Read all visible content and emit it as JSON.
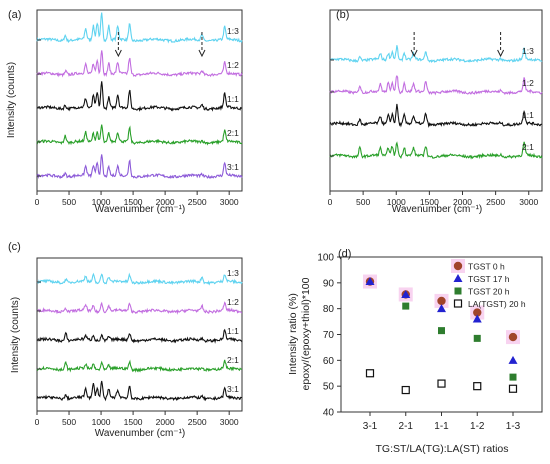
{
  "chart_data": [
    {
      "panel": "(a)",
      "type": "line",
      "xlabel": "Wavenumber (cm⁻¹)",
      "ylabel": "Intensity (counts)",
      "xlim": [
        0,
        3200
      ],
      "xticks": [
        0,
        500,
        1000,
        1500,
        2000,
        2500,
        3000
      ],
      "marker_positions": [
        1270,
        2575
      ],
      "series": [
        {
          "name": "1:3",
          "color": "#5fd3f0",
          "peaks": [
            [
              440,
              3
            ],
            [
              760,
              6
            ],
            [
              880,
              8
            ],
            [
              940,
              10
            ],
            [
              1010,
              16
            ],
            [
              1120,
              8
            ],
            [
              1260,
              7
            ],
            [
              1445,
              9
            ],
            [
              2575,
              3
            ],
            [
              2930,
              7
            ]
          ]
        },
        {
          "name": "1:2",
          "color": "#c26ee0",
          "peaks": [
            [
              450,
              2
            ],
            [
              760,
              5
            ],
            [
              880,
              6
            ],
            [
              940,
              8
            ],
            [
              1010,
              14
            ],
            [
              1120,
              6
            ],
            [
              1260,
              6
            ],
            [
              1445,
              9
            ],
            [
              2575,
              2
            ],
            [
              2930,
              6
            ]
          ]
        },
        {
          "name": "1:1",
          "color": "#111111",
          "peaks": [
            [
              440,
              2
            ],
            [
              760,
              5
            ],
            [
              880,
              7
            ],
            [
              940,
              9
            ],
            [
              1010,
              15
            ],
            [
              1120,
              6
            ],
            [
              1260,
              7
            ],
            [
              1445,
              10
            ],
            [
              2575,
              2
            ],
            [
              2930,
              8
            ]
          ]
        },
        {
          "name": "2:1",
          "color": "#2aa02a",
          "peaks": [
            [
              440,
              4
            ],
            [
              760,
              5
            ],
            [
              880,
              5
            ],
            [
              940,
              6
            ],
            [
              1010,
              10
            ],
            [
              1120,
              5
            ],
            [
              1260,
              5
            ],
            [
              1445,
              8
            ],
            [
              2575,
              1
            ],
            [
              2930,
              6
            ]
          ]
        },
        {
          "name": "3:1",
          "color": "#8c5ad8",
          "peaks": [
            [
              440,
              2
            ],
            [
              760,
              5
            ],
            [
              880,
              6
            ],
            [
              940,
              8
            ],
            [
              1010,
              12
            ],
            [
              1120,
              5
            ],
            [
              1260,
              5
            ],
            [
              1445,
              9
            ],
            [
              2575,
              1
            ],
            [
              2930,
              7
            ]
          ]
        }
      ]
    },
    {
      "panel": "(b)",
      "type": "line",
      "xlabel": "Wavenumber (cm⁻¹)",
      "ylabel": "",
      "xlim": [
        0,
        3200
      ],
      "xticks": [
        0,
        500,
        1000,
        1500,
        2000,
        2500,
        3000
      ],
      "marker_positions": [
        1270,
        2575
      ],
      "series": [
        {
          "name": "1:3",
          "color": "#5fd3f0",
          "peaks": [
            [
              450,
              2
            ],
            [
              760,
              3
            ],
            [
              880,
              4
            ],
            [
              940,
              5
            ],
            [
              1010,
              8
            ],
            [
              1120,
              4
            ],
            [
              1260,
              3
            ],
            [
              1445,
              5
            ],
            [
              2575,
              1
            ],
            [
              2930,
              6
            ]
          ]
        },
        {
          "name": "1:2",
          "color": "#c26ee0",
          "peaks": [
            [
              450,
              4
            ],
            [
              760,
              4
            ],
            [
              880,
              5
            ],
            [
              940,
              6
            ],
            [
              1010,
              10
            ],
            [
              1120,
              5
            ],
            [
              1260,
              4
            ],
            [
              1445,
              6
            ],
            [
              2575,
              1
            ],
            [
              2930,
              7
            ]
          ]
        },
        {
          "name": "1:1",
          "color": "#111111",
          "peaks": [
            [
              450,
              3
            ],
            [
              760,
              4
            ],
            [
              880,
              5
            ],
            [
              940,
              6
            ],
            [
              1010,
              11
            ],
            [
              1120,
              5
            ],
            [
              1260,
              4
            ],
            [
              1445,
              6
            ],
            [
              2575,
              1
            ],
            [
              2930,
              7
            ]
          ]
        },
        {
          "name": "2:1",
          "color": "#2aa02a",
          "peaks": [
            [
              450,
              5
            ],
            [
              760,
              4
            ],
            [
              880,
              5
            ],
            [
              940,
              6
            ],
            [
              1010,
              8
            ],
            [
              1120,
              5
            ],
            [
              1260,
              4
            ],
            [
              1445,
              6
            ],
            [
              2575,
              1
            ],
            [
              2930,
              7
            ]
          ]
        }
      ]
    },
    {
      "panel": "(c)",
      "type": "line",
      "xlabel": "Wavenumber (cm⁻¹)",
      "ylabel": "Intensity (counts)",
      "xlim": [
        0,
        3200
      ],
      "xticks": [
        0,
        500,
        1000,
        1500,
        2000,
        2500,
        3000
      ],
      "series": [
        {
          "name": "1:3",
          "color": "#5fd3f0",
          "peaks": [
            [
              450,
              2
            ],
            [
              760,
              3
            ],
            [
              880,
              4
            ],
            [
              1010,
              5
            ],
            [
              1120,
              3
            ],
            [
              1445,
              4
            ],
            [
              2575,
              3
            ],
            [
              2930,
              4
            ]
          ]
        },
        {
          "name": "1:2",
          "color": "#c26ee0",
          "peaks": [
            [
              450,
              2
            ],
            [
              760,
              3
            ],
            [
              880,
              3
            ],
            [
              1010,
              5
            ],
            [
              1120,
              3
            ],
            [
              1445,
              4
            ],
            [
              2575,
              3
            ],
            [
              2930,
              4
            ]
          ]
        },
        {
          "name": "1:1",
          "color": "#111111",
          "peaks": [
            [
              450,
              4
            ],
            [
              760,
              2
            ],
            [
              880,
              3
            ],
            [
              1010,
              3
            ],
            [
              1120,
              2
            ],
            [
              1445,
              4
            ],
            [
              2575,
              1
            ],
            [
              2930,
              5
            ]
          ]
        },
        {
          "name": "2:1",
          "color": "#2aa02a",
          "peaks": [
            [
              450,
              4
            ],
            [
              760,
              2
            ],
            [
              880,
              3
            ],
            [
              1010,
              4
            ],
            [
              1120,
              2
            ],
            [
              1445,
              4
            ],
            [
              2575,
              1
            ],
            [
              2930,
              4
            ]
          ]
        },
        {
          "name": "3:1",
          "color": "#111111",
          "peaks": [
            [
              450,
              2
            ],
            [
              760,
              5
            ],
            [
              880,
              8
            ],
            [
              940,
              6
            ],
            [
              1010,
              10
            ],
            [
              1120,
              5
            ],
            [
              1260,
              4
            ],
            [
              1445,
              7
            ],
            [
              2575,
              1
            ],
            [
              2930,
              5
            ]
          ]
        }
      ]
    },
    {
      "panel": "(d)",
      "type": "scatter",
      "xlabel": "TG:ST/LA(TG):LA(ST) ratios",
      "ylabel": "Intensity ratio (%)",
      "ylabel2": "epoxy/(epoxy+thiol)*100",
      "categories": [
        "3-1",
        "2-1",
        "1-1",
        "1-2",
        "1-3"
      ],
      "ylim": [
        40,
        100
      ],
      "yticks": [
        40,
        50,
        60,
        70,
        80,
        90,
        100
      ],
      "legend_position": "top-right",
      "series": [
        {
          "name": "TGST 0 h",
          "marker": "circle",
          "color": "#a0442a",
          "values": [
            90.5,
            85.5,
            83,
            78.5,
            69
          ]
        },
        {
          "name": "TGST 17 h",
          "marker": "triangle",
          "color": "#2222d0",
          "values": [
            90.5,
            85.5,
            80,
            76,
            60
          ]
        },
        {
          "name": "TGST 20 h",
          "marker": "square",
          "color": "#2e7d2e",
          "values": [
            null,
            81,
            71.5,
            68.5,
            53.5
          ]
        },
        {
          "name": "LA(TGST) 20 h",
          "marker": "open-square",
          "color": "#111111",
          "values": [
            55,
            48.5,
            51,
            50,
            49
          ]
        }
      ]
    }
  ]
}
